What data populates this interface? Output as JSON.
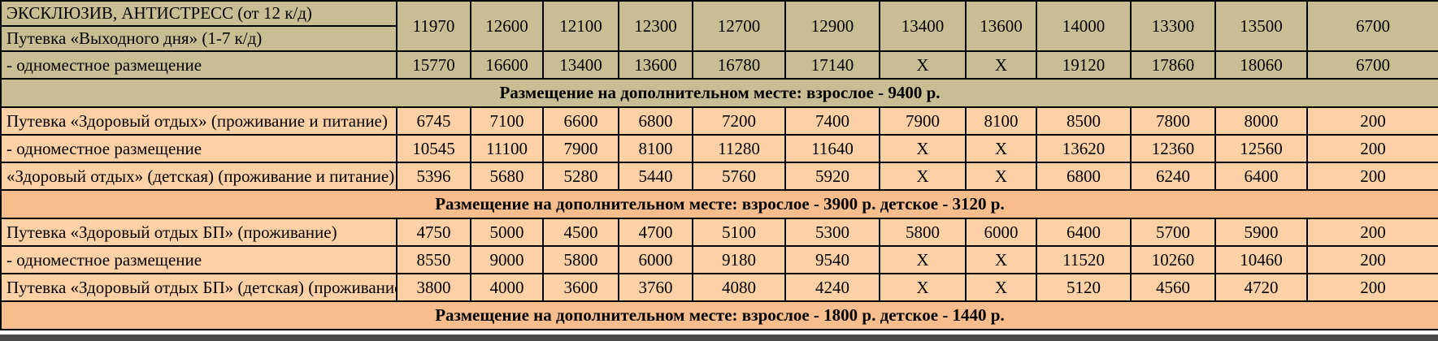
{
  "colors": {
    "khaki_bg": "#c9bd94",
    "peach_row_bg": "#fdd0a6",
    "peach_band_bg": "#f8bd8c",
    "border": "#000000",
    "text": "#000000",
    "bottom_bar": "#4a4a4a"
  },
  "table": {
    "num_price_columns": 12,
    "rows": [
      {
        "kind": "double",
        "section": "khaki",
        "labels": [
          "ЭКСКЛЮЗИВ, АНТИСТРЕСС (от 12 к/д)",
          "Путевка «Выходного дня» (1-7 к/д)"
        ],
        "values": [
          "11970",
          "12600",
          "12100",
          "12300",
          "12700",
          "12900",
          "13400",
          "13600",
          "14000",
          "13300",
          "13500",
          "6700"
        ]
      },
      {
        "kind": "data",
        "section": "khaki",
        "label": "- одноместное размещение",
        "values": [
          "15770",
          "16600",
          "13400",
          "13600",
          "16780",
          "17140",
          "X",
          "X",
          "19120",
          "17860",
          "18060",
          "6700"
        ]
      },
      {
        "kind": "band",
        "section": "khaki-band",
        "label": "Размещение на дополнительном месте: взрослое - 9400 р."
      },
      {
        "kind": "data",
        "section": "peach",
        "label": "Путевка «Здоровый отдых» (проживание и питание)",
        "values": [
          "6745",
          "7100",
          "6600",
          "6800",
          "7200",
          "7400",
          "7900",
          "8100",
          "8500",
          "7800",
          "8000",
          "200"
        ]
      },
      {
        "kind": "data",
        "section": "peach",
        "label": "- одноместное размещение",
        "values": [
          "10545",
          "11100",
          "7900",
          "8100",
          "11280",
          "11640",
          "X",
          "X",
          "13620",
          "12360",
          "12560",
          "200"
        ]
      },
      {
        "kind": "data",
        "section": "peach",
        "label": "«Здоровый отдых» (детская) (проживание и питание)",
        "values": [
          "5396",
          "5680",
          "5280",
          "5440",
          "5760",
          "5920",
          "X",
          "X",
          "6800",
          "6240",
          "6400",
          "200"
        ]
      },
      {
        "kind": "band",
        "section": "peach-band",
        "label": "Размещение на дополнительном месте: взрослое - 3900 р. детское - 3120 р."
      },
      {
        "kind": "data",
        "section": "peach",
        "label": "Путевка «Здоровый отдых БП» (проживание)",
        "values": [
          "4750",
          "5000",
          "4500",
          "4700",
          "5100",
          "5300",
          "5800",
          "6000",
          "6400",
          "5700",
          "5900",
          "200"
        ]
      },
      {
        "kind": "data",
        "section": "peach",
        "label": "- одноместное размещение",
        "values": [
          "8550",
          "9000",
          "5800",
          "6000",
          "9180",
          "9540",
          "X",
          "X",
          "11520",
          "10260",
          "10460",
          "200"
        ]
      },
      {
        "kind": "data",
        "section": "peach",
        "label": "Путевка «Здоровый отдых БП» (детская) (проживание)",
        "values": [
          "3800",
          "4000",
          "3600",
          "3760",
          "4080",
          "4240",
          "X",
          "X",
          "5120",
          "4560",
          "4720",
          "200"
        ]
      },
      {
        "kind": "band",
        "section": "peach-band",
        "label": "Размещение на дополнительном месте: взрослое - 1800 р. детское - 1440 р."
      }
    ]
  }
}
